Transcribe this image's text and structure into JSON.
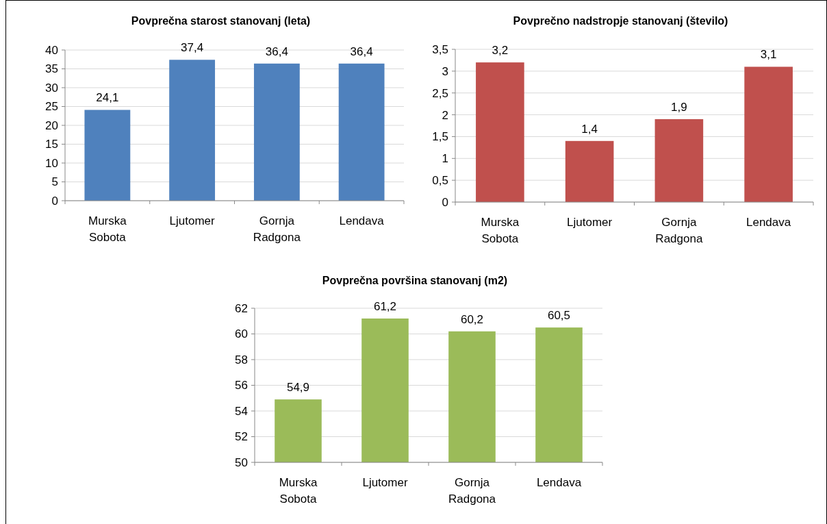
{
  "chart_data": [
    {
      "type": "bar",
      "title": "Povprečna starost stanovanj (leta)",
      "categories": [
        "Murska Sobota",
        "Ljutomer",
        "Gornja Radgona",
        "Lendava"
      ],
      "values": [
        24.1,
        37.4,
        36.4,
        36.4
      ],
      "value_labels": [
        "24,1",
        "37,4",
        "36,4",
        "36,4"
      ],
      "color": "#4f81bd",
      "ylim": [
        0,
        40
      ],
      "yticks": [
        0,
        5,
        10,
        15,
        20,
        25,
        30,
        35,
        40
      ],
      "grid": "y"
    },
    {
      "type": "bar",
      "title": "Povprečno nadstropje stanovanj (število)",
      "categories": [
        "Murska Sobota",
        "Ljutomer",
        "Gornja Radgona",
        "Lendava"
      ],
      "values": [
        3.2,
        1.4,
        1.9,
        3.1
      ],
      "value_labels": [
        "3,2",
        "1,4",
        "1,9",
        "3,1"
      ],
      "color": "#c0504d",
      "ylim": [
        0,
        3.5
      ],
      "yticks": [
        0,
        {
          "value": 0.5,
          "label": "0,5"
        },
        1,
        {
          "value": 1.5,
          "label": "1,5"
        },
        2,
        {
          "value": 2.5,
          "label": "2,5"
        },
        3,
        {
          "value": 3.5,
          "label": "3,5"
        }
      ],
      "grid": "y"
    },
    {
      "type": "bar",
      "title": "Povprečna površina stanovanj (m2)",
      "categories": [
        "Murska Sobota",
        "Ljutomer",
        "Gornja Radgona",
        "Lendava"
      ],
      "values": [
        54.9,
        61.2,
        60.2,
        60.5
      ],
      "value_labels": [
        "54,9",
        "61,2",
        "60,2",
        "60,5"
      ],
      "color": "#9bbb59",
      "ylim": [
        50,
        62
      ],
      "yticks": [
        50,
        52,
        54,
        56,
        58,
        60,
        62
      ],
      "grid": "y"
    }
  ]
}
